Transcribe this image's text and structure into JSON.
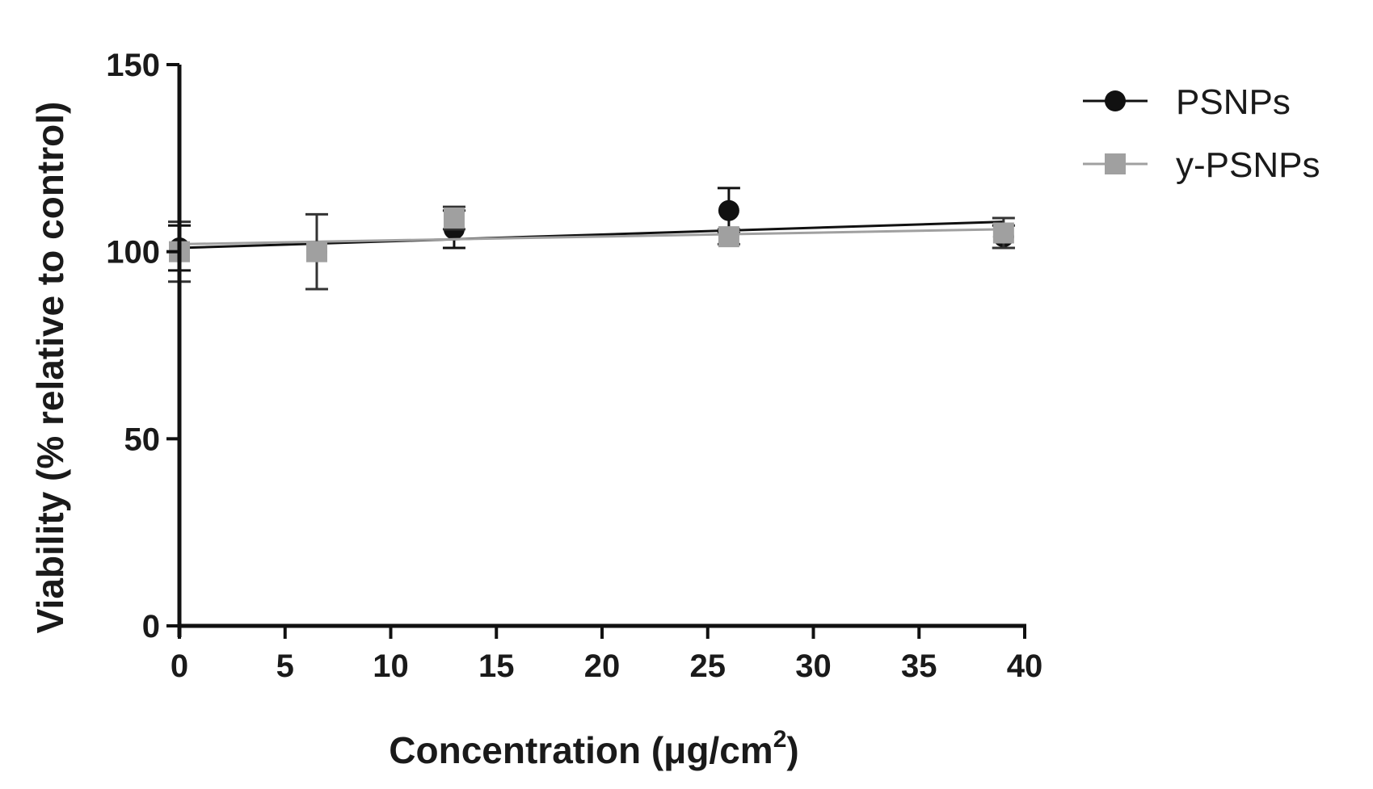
{
  "chart_data": {
    "type": "scatter",
    "xlabel": "Concentration (μg/cm",
    "xlabel_sup": "2",
    "xlabel_end": ")",
    "ylabel": "Viability (% relative to control)",
    "xlim": [
      0,
      40
    ],
    "ylim": [
      0,
      150
    ],
    "xticks": [
      0,
      5,
      10,
      15,
      20,
      25,
      30,
      35,
      40
    ],
    "yticks": [
      0,
      50,
      100,
      150
    ],
    "legend_position": "top-right",
    "series": [
      {
        "name": "PSNPs",
        "marker": "circle",
        "color": "#111111",
        "x": [
          0,
          6.5,
          13,
          26,
          39
        ],
        "y": [
          101,
          100,
          106,
          111,
          104
        ],
        "err": [
          6,
          0,
          5,
          6,
          3
        ],
        "fit": {
          "x": [
            0,
            39
          ],
          "y": [
            101,
            108
          ]
        }
      },
      {
        "name": "y-PSNPs",
        "marker": "square",
        "color": "#a0a0a0",
        "x": [
          0,
          6.5,
          13,
          26,
          39
        ],
        "y": [
          100,
          100,
          109,
          104,
          105
        ],
        "err": [
          8,
          10,
          3,
          2,
          4
        ],
        "fit": {
          "x": [
            0,
            39
          ],
          "y": [
            102,
            106
          ]
        }
      }
    ]
  }
}
